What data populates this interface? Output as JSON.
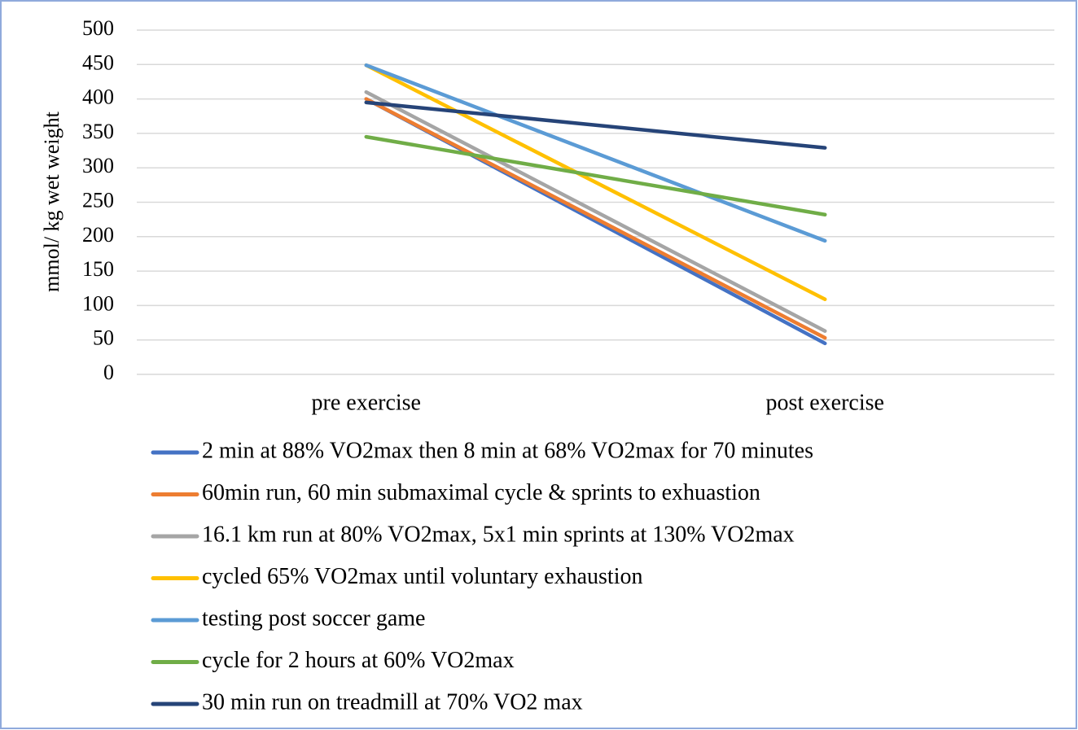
{
  "chart_data": {
    "type": "line",
    "y_label": "mmol/ kg wet weight",
    "categories": [
      "pre exercise",
      "post exercise"
    ],
    "series": [
      {
        "name": "2 min at 88% VO2max then 8 min at 68% VO2max for 70 minutes",
        "color": "#4472c4",
        "values": [
          400,
          45
        ]
      },
      {
        "name": "60min run, 60 min submaximal cycle & sprints to exhuastion",
        "color": "#ed7d31",
        "values": [
          400,
          53
        ]
      },
      {
        "name": "16.1 km run at 80% VO2max,  5x1 min sprints at 130% VO2max",
        "color": "#a5a5a5",
        "values": [
          410,
          63
        ]
      },
      {
        "name": "cycled 65% VO2max until voluntary exhaustion",
        "color": "#ffc000",
        "values": [
          449,
          109
        ]
      },
      {
        "name": "testing post soccer game",
        "color": "#5b9bd5",
        "values": [
          449,
          194
        ]
      },
      {
        "name": "cycle for 2 hours at 60% VO2max",
        "color": "#70ad47",
        "values": [
          345,
          232
        ]
      },
      {
        "name": "30 min run on treadmill at 70% VO2 max",
        "color": "#264478",
        "values": [
          395,
          329
        ]
      }
    ],
    "ylim": [
      0,
      500
    ],
    "yticks": [
      0,
      50,
      100,
      150,
      200,
      250,
      300,
      350,
      400,
      450,
      500
    ],
    "grid": true,
    "legend": "bottom"
  }
}
